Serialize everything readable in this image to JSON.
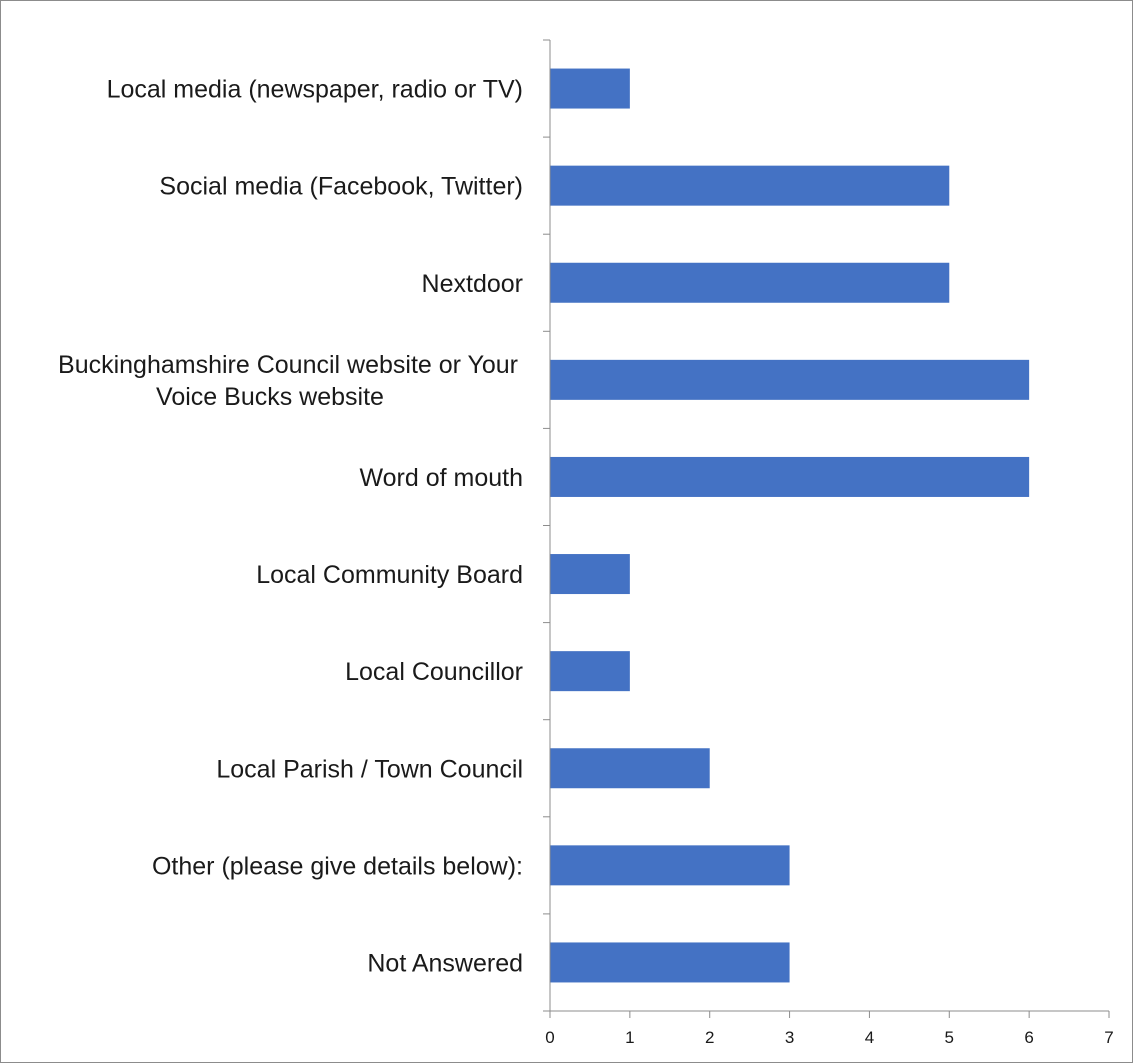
{
  "chart_data": {
    "type": "bar",
    "orientation": "horizontal",
    "categories": [
      [
        "Local media (newspaper, radio or TV)"
      ],
      [
        "Social media (Facebook, Twitter)"
      ],
      [
        "Nextdoor"
      ],
      [
        "Buckinghamshire Council website or Your",
        "Voice Bucks website"
      ],
      [
        "Word of mouth"
      ],
      [
        "Local Community Board"
      ],
      [
        "Local Councillor"
      ],
      [
        "Local Parish / Town Council"
      ],
      [
        "Other (please give details below):"
      ],
      [
        "Not Answered"
      ]
    ],
    "values": [
      1,
      5,
      5,
      6,
      6,
      1,
      1,
      2,
      3,
      3
    ],
    "xlim": [
      0,
      7
    ],
    "xticks": [
      0,
      1,
      2,
      3,
      4,
      5,
      6,
      7
    ],
    "title": "",
    "xlabel": "",
    "ylabel": "",
    "grid": false,
    "legend": "none",
    "bar_color": "#4472C4",
    "axis_color": "#8c8c8c"
  }
}
